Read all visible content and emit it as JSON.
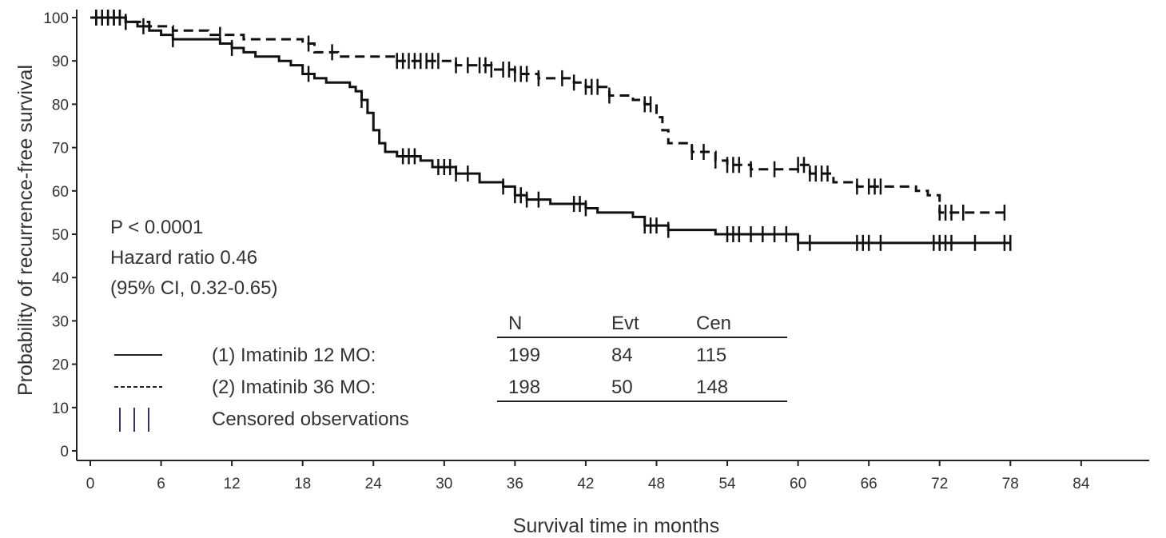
{
  "chart_data": {
    "type": "line",
    "subtype": "kaplan-meier survival curve",
    "xlabel": "Survival time in months",
    "ylabel": "Probability of recurrence-free survival",
    "xlim": [
      0,
      84
    ],
    "ylim": [
      0,
      100
    ],
    "x_ticks": [
      "0",
      "6",
      "12",
      "18",
      "24",
      "30",
      "36",
      "42",
      "48",
      "54",
      "60",
      "66",
      "72",
      "78",
      "84"
    ],
    "y_ticks": [
      "0",
      "10",
      "20",
      "30",
      "40",
      "50",
      "60",
      "70",
      "80",
      "90",
      "100"
    ],
    "grid": false,
    "annotations": {
      "p_value": "P < 0.0001",
      "hazard_ratio": "Hazard ratio 0.46",
      "ci": "(95% CI, 0.32-0.65)"
    },
    "legend": {
      "position": "bottom-left",
      "entries": [
        {
          "label": "(1) Imatinib 12 MO:",
          "style": "solid"
        },
        {
          "label": "(2) Imatinib 36 MO:",
          "style": "dashed"
        },
        {
          "label": "Censored observations",
          "style": "tick-marks"
        }
      ]
    },
    "table": {
      "headers": [
        "N",
        "Evt",
        "Cen"
      ],
      "rows": [
        [
          "199",
          "84",
          "115"
        ],
        [
          "198",
          "50",
          "148"
        ]
      ]
    },
    "series": [
      {
        "style": "solid",
        "steps": [
          [
            0,
            100
          ],
          [
            3,
            99
          ],
          [
            4,
            98
          ],
          [
            5,
            97
          ],
          [
            6,
            96
          ],
          [
            7,
            95
          ],
          [
            11,
            94
          ],
          [
            12,
            93
          ],
          [
            13,
            92
          ],
          [
            14,
            91
          ],
          [
            16,
            90
          ],
          [
            17,
            89
          ],
          [
            18,
            87
          ],
          [
            19,
            86
          ],
          [
            20,
            85
          ],
          [
            22,
            84
          ],
          [
            22.5,
            83
          ],
          [
            23,
            81
          ],
          [
            23.5,
            78
          ],
          [
            24,
            74
          ],
          [
            24.5,
            71
          ],
          [
            25,
            69
          ],
          [
            26,
            68
          ],
          [
            28,
            67
          ],
          [
            29,
            65.5
          ],
          [
            31,
            64
          ],
          [
            33,
            62
          ],
          [
            35,
            61
          ],
          [
            36,
            59
          ],
          [
            37,
            58
          ],
          [
            39,
            57
          ],
          [
            42,
            56
          ],
          [
            43,
            55
          ],
          [
            46,
            54
          ],
          [
            47,
            52
          ],
          [
            49,
            51
          ],
          [
            53,
            50
          ],
          [
            60,
            48
          ],
          [
            78,
            48
          ]
        ],
        "censored": [
          0.5,
          1,
          1.5,
          2,
          2.5,
          3,
          4.5,
          7,
          12,
          18.5,
          23,
          26.5,
          27,
          27.5,
          29.5,
          30,
          30.5,
          31,
          32,
          35,
          36,
          36.5,
          37,
          38,
          41,
          41.5,
          42,
          47,
          47.5,
          48,
          49,
          54,
          54.5,
          55,
          56,
          57,
          58,
          59,
          60,
          61,
          65,
          65.5,
          66,
          67,
          71.5,
          72,
          72.5,
          73,
          75,
          77.5,
          78
        ]
      },
      {
        "style": "dashed",
        "steps": [
          [
            0,
            100
          ],
          [
            3,
            99
          ],
          [
            5,
            98
          ],
          [
            7,
            97
          ],
          [
            10,
            96
          ],
          [
            13,
            95
          ],
          [
            18,
            94
          ],
          [
            19,
            92
          ],
          [
            21,
            91
          ],
          [
            26,
            90
          ],
          [
            31,
            89
          ],
          [
            34,
            88
          ],
          [
            36,
            87
          ],
          [
            38,
            86
          ],
          [
            41,
            85
          ],
          [
            42,
            84
          ],
          [
            44,
            82
          ],
          [
            46,
            81
          ],
          [
            47,
            80
          ],
          [
            48,
            77
          ],
          [
            48.5,
            74
          ],
          [
            49,
            71
          ],
          [
            51,
            69
          ],
          [
            53,
            67
          ],
          [
            54,
            66
          ],
          [
            56,
            65
          ],
          [
            60,
            66
          ],
          [
            61,
            64
          ],
          [
            63,
            62
          ],
          [
            65,
            61
          ],
          [
            70,
            60
          ],
          [
            71,
            59
          ],
          [
            72,
            55
          ],
          [
            78,
            55
          ]
        ],
        "censored": [
          0.5,
          1,
          1.5,
          2,
          2.5,
          3,
          11,
          18.5,
          20.5,
          26,
          26.5,
          27,
          27.5,
          28,
          28.5,
          29,
          29.5,
          31,
          32,
          33,
          33.5,
          34,
          35,
          35.5,
          36,
          36.5,
          37,
          38,
          40,
          41,
          42,
          42.5,
          43,
          44,
          47,
          47.5,
          51,
          52,
          53,
          54,
          54.5,
          55,
          56,
          58,
          60,
          60.5,
          61,
          61.5,
          62,
          62.5,
          65,
          66,
          66.5,
          67,
          72,
          72.5,
          73,
          74,
          77.5
        ]
      }
    ]
  }
}
